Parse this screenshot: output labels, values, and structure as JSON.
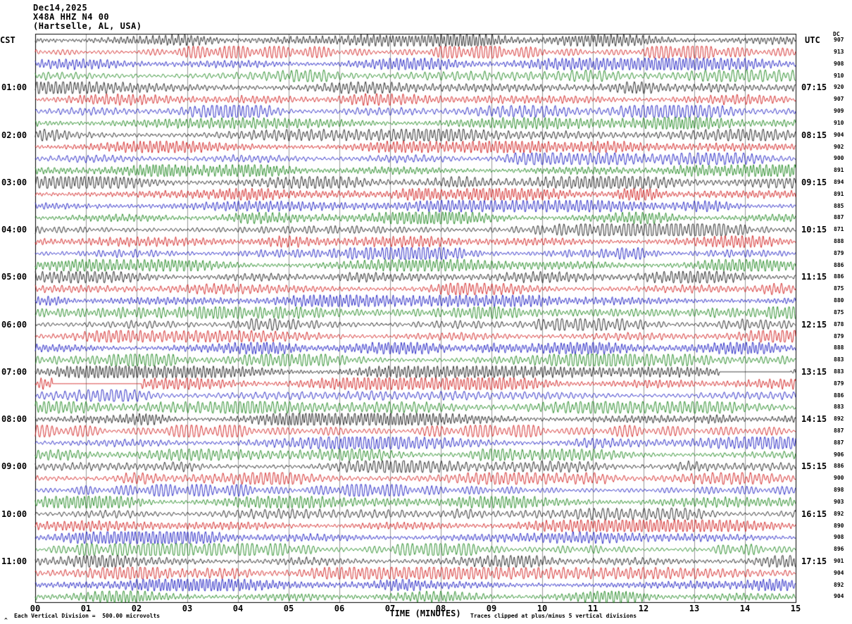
{
  "header": {
    "date": "Dec14,2025",
    "station": "X48A HHZ N4 00",
    "location": "(Hartselle, AL, USA)"
  },
  "axes": {
    "left_title": "CST",
    "right_title": "UTC",
    "dc_title": "DC",
    "x_label": "TIME (MINUTES)",
    "x_ticks": [
      "00",
      "01",
      "02",
      "03",
      "04",
      "05",
      "06",
      "07",
      "08",
      "09",
      "10",
      "11",
      "12",
      "13",
      "14",
      "15"
    ]
  },
  "footer": {
    "scale_note": "Each Vertical Division =  500.00 microvolts",
    "clip_note": "Traces clipped at plus/minus 5 vertical divisions",
    "corner_mark": "^"
  },
  "chart_data": {
    "type": "line",
    "subtype": "seismogram-helicorder",
    "title": "X48A HHZ N4 00 (Hartselle, AL, USA) Dec14,2025",
    "xlabel": "TIME (MINUTES)",
    "x_range_minutes": [
      0,
      15
    ],
    "row_duration_minutes": 15,
    "rows_total": 48,
    "grid": "vertical-minute-lines",
    "trace_colors": {
      "black": "#000000",
      "red": "#cc0000",
      "blue": "#0000bb",
      "green": "#007700"
    },
    "color_cycle": [
      "black",
      "red",
      "blue",
      "green"
    ],
    "gaps": [
      {
        "row": 28,
        "start_min": 13.5,
        "end_min": 14.9
      },
      {
        "row": 29,
        "start_min": 0.35,
        "end_min": 2.1
      }
    ],
    "rows": [
      {
        "cst": "",
        "utc": "",
        "dc": 907
      },
      {
        "cst": "",
        "utc": "",
        "dc": 913
      },
      {
        "cst": "",
        "utc": "",
        "dc": 908
      },
      {
        "cst": "",
        "utc": "",
        "dc": 910
      },
      {
        "cst": "01:00",
        "utc": "07:15",
        "dc": 920
      },
      {
        "cst": "",
        "utc": "",
        "dc": 907
      },
      {
        "cst": "",
        "utc": "",
        "dc": 909
      },
      {
        "cst": "",
        "utc": "",
        "dc": 910
      },
      {
        "cst": "02:00",
        "utc": "08:15",
        "dc": 904
      },
      {
        "cst": "",
        "utc": "",
        "dc": 902
      },
      {
        "cst": "",
        "utc": "",
        "dc": 900
      },
      {
        "cst": "",
        "utc": "",
        "dc": 891
      },
      {
        "cst": "03:00",
        "utc": "09:15",
        "dc": 894
      },
      {
        "cst": "",
        "utc": "",
        "dc": 891
      },
      {
        "cst": "",
        "utc": "",
        "dc": 885
      },
      {
        "cst": "",
        "utc": "",
        "dc": 887
      },
      {
        "cst": "04:00",
        "utc": "10:15",
        "dc": 871
      },
      {
        "cst": "",
        "utc": "",
        "dc": 888
      },
      {
        "cst": "",
        "utc": "",
        "dc": 879
      },
      {
        "cst": "",
        "utc": "",
        "dc": 886
      },
      {
        "cst": "05:00",
        "utc": "11:15",
        "dc": 886
      },
      {
        "cst": "",
        "utc": "",
        "dc": 875
      },
      {
        "cst": "",
        "utc": "",
        "dc": 880
      },
      {
        "cst": "",
        "utc": "",
        "dc": 875
      },
      {
        "cst": "06:00",
        "utc": "12:15",
        "dc": 878
      },
      {
        "cst": "",
        "utc": "",
        "dc": 879
      },
      {
        "cst": "",
        "utc": "",
        "dc": 888
      },
      {
        "cst": "",
        "utc": "",
        "dc": 883
      },
      {
        "cst": "07:00",
        "utc": "13:15",
        "dc": 883
      },
      {
        "cst": "",
        "utc": "",
        "dc": 879
      },
      {
        "cst": "",
        "utc": "",
        "dc": 886
      },
      {
        "cst": "",
        "utc": "",
        "dc": 883
      },
      {
        "cst": "08:00",
        "utc": "14:15",
        "dc": 892
      },
      {
        "cst": "",
        "utc": "",
        "dc": 887
      },
      {
        "cst": "",
        "utc": "",
        "dc": 887
      },
      {
        "cst": "",
        "utc": "",
        "dc": 906
      },
      {
        "cst": "09:00",
        "utc": "15:15",
        "dc": 886
      },
      {
        "cst": "",
        "utc": "",
        "dc": 900
      },
      {
        "cst": "",
        "utc": "",
        "dc": 898
      },
      {
        "cst": "",
        "utc": "",
        "dc": 903
      },
      {
        "cst": "10:00",
        "utc": "16:15",
        "dc": 892
      },
      {
        "cst": "",
        "utc": "",
        "dc": 890
      },
      {
        "cst": "",
        "utc": "",
        "dc": 908
      },
      {
        "cst": "",
        "utc": "",
        "dc": 896
      },
      {
        "cst": "11:00",
        "utc": "17:15",
        "dc": 901
      },
      {
        "cst": "",
        "utc": "",
        "dc": 904
      },
      {
        "cst": "",
        "utc": "",
        "dc": 892
      },
      {
        "cst": "",
        "utc": "",
        "dc": 904
      }
    ]
  }
}
